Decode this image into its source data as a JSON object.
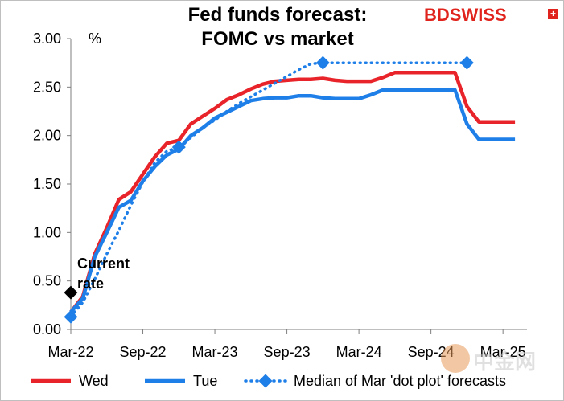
{
  "logo": {
    "part1": "BD",
    "part2": "SWISS",
    "symbol": "+"
  },
  "watermark": {
    "text": "中金网"
  },
  "colors": {
    "wed": "#e8242a",
    "tue": "#1f7fe8",
    "median": "#1f7fe8",
    "current": "#000000"
  },
  "chart_data": {
    "type": "line",
    "title_lines": [
      "Fed funds forecast:",
      "FOMC vs market"
    ],
    "ylabel": "%",
    "ylim": [
      0,
      3.0
    ],
    "yticks": [
      "0.00",
      "0.50",
      "1.00",
      "1.50",
      "2.00",
      "2.50",
      "3.00"
    ],
    "xticks": [
      "Mar-22",
      "Sep-22",
      "Mar-23",
      "Sep-23",
      "Mar-24",
      "Sep-24",
      "Mar-25"
    ],
    "xlim_months": [
      "2022-03",
      "2025-04"
    ],
    "annotation": "Current\nrate",
    "series": [
      {
        "name": "Wed",
        "style": "solid",
        "points": [
          [
            "2022-03",
            0.18
          ],
          [
            "2022-04",
            0.34
          ],
          [
            "2022-05",
            0.78
          ],
          [
            "2022-06",
            1.05
          ],
          [
            "2022-07",
            1.34
          ],
          [
            "2022-08",
            1.42
          ],
          [
            "2022-09",
            1.6
          ],
          [
            "2022-10",
            1.78
          ],
          [
            "2022-11",
            1.92
          ],
          [
            "2022-12",
            1.95
          ],
          [
            "2023-01",
            2.12
          ],
          [
            "2023-02",
            2.2
          ],
          [
            "2023-03",
            2.28
          ],
          [
            "2023-04",
            2.37
          ],
          [
            "2023-05",
            2.42
          ],
          [
            "2023-06",
            2.48
          ],
          [
            "2023-07",
            2.53
          ],
          [
            "2023-08",
            2.56
          ],
          [
            "2023-09",
            2.57
          ],
          [
            "2023-10",
            2.58
          ],
          [
            "2023-11",
            2.58
          ],
          [
            "2023-12",
            2.59
          ],
          [
            "2024-01",
            2.57
          ],
          [
            "2024-02",
            2.56
          ],
          [
            "2024-03",
            2.56
          ],
          [
            "2024-04",
            2.56
          ],
          [
            "2024-05",
            2.6
          ],
          [
            "2024-06",
            2.65
          ],
          [
            "2024-07",
            2.65
          ],
          [
            "2024-08",
            2.65
          ],
          [
            "2024-09",
            2.65
          ],
          [
            "2024-10",
            2.65
          ],
          [
            "2024-11",
            2.65
          ],
          [
            "2024-12",
            2.3
          ],
          [
            "2025-01",
            2.14
          ],
          [
            "2025-02",
            2.14
          ],
          [
            "2025-03",
            2.14
          ],
          [
            "2025-04",
            2.14
          ]
        ]
      },
      {
        "name": "Tue",
        "style": "solid",
        "points": [
          [
            "2022-03",
            0.18
          ],
          [
            "2022-04",
            0.32
          ],
          [
            "2022-05",
            0.75
          ],
          [
            "2022-06",
            1.0
          ],
          [
            "2022-07",
            1.26
          ],
          [
            "2022-08",
            1.33
          ],
          [
            "2022-09",
            1.53
          ],
          [
            "2022-10",
            1.68
          ],
          [
            "2022-11",
            1.8
          ],
          [
            "2022-12",
            1.86
          ],
          [
            "2023-01",
            2.0
          ],
          [
            "2023-02",
            2.08
          ],
          [
            "2023-03",
            2.18
          ],
          [
            "2023-04",
            2.24
          ],
          [
            "2023-05",
            2.3
          ],
          [
            "2023-06",
            2.36
          ],
          [
            "2023-07",
            2.38
          ],
          [
            "2023-08",
            2.39
          ],
          [
            "2023-09",
            2.39
          ],
          [
            "2023-10",
            2.41
          ],
          [
            "2023-11",
            2.41
          ],
          [
            "2023-12",
            2.39
          ],
          [
            "2024-01",
            2.38
          ],
          [
            "2024-02",
            2.38
          ],
          [
            "2024-03",
            2.38
          ],
          [
            "2024-04",
            2.42
          ],
          [
            "2024-05",
            2.47
          ],
          [
            "2024-06",
            2.47
          ],
          [
            "2024-07",
            2.47
          ],
          [
            "2024-08",
            2.47
          ],
          [
            "2024-09",
            2.47
          ],
          [
            "2024-10",
            2.47
          ],
          [
            "2024-11",
            2.47
          ],
          [
            "2024-12",
            2.12
          ],
          [
            "2025-01",
            1.96
          ],
          [
            "2025-02",
            1.96
          ],
          [
            "2025-03",
            1.96
          ],
          [
            "2025-04",
            1.96
          ]
        ]
      },
      {
        "name": "Median of Mar 'dot plot' forecasts",
        "style": "dotted",
        "markers": [
          [
            "2022-03",
            0.13
          ],
          [
            "2022-12",
            1.88
          ],
          [
            "2023-12",
            2.75
          ],
          [
            "2024-12",
            2.75
          ]
        ],
        "points": [
          [
            "2022-03",
            0.13
          ],
          [
            "2022-04",
            0.28
          ],
          [
            "2022-05",
            0.52
          ],
          [
            "2022-06",
            0.78
          ],
          [
            "2022-07",
            1.02
          ],
          [
            "2022-08",
            1.28
          ],
          [
            "2022-09",
            1.52
          ],
          [
            "2022-10",
            1.72
          ],
          [
            "2022-11",
            1.84
          ],
          [
            "2022-12",
            1.88
          ],
          [
            "2023-01",
            1.98
          ],
          [
            "2023-02",
            2.08
          ],
          [
            "2023-03",
            2.16
          ],
          [
            "2023-04",
            2.25
          ],
          [
            "2023-05",
            2.33
          ],
          [
            "2023-06",
            2.4
          ],
          [
            "2023-07",
            2.47
          ],
          [
            "2023-08",
            2.54
          ],
          [
            "2023-09",
            2.61
          ],
          [
            "2023-10",
            2.68
          ],
          [
            "2023-11",
            2.74
          ],
          [
            "2023-12",
            2.75
          ],
          [
            "2024-01",
            2.75
          ],
          [
            "2024-02",
            2.75
          ],
          [
            "2024-03",
            2.75
          ],
          [
            "2024-04",
            2.75
          ],
          [
            "2024-05",
            2.75
          ],
          [
            "2024-06",
            2.75
          ],
          [
            "2024-07",
            2.75
          ],
          [
            "2024-08",
            2.75
          ],
          [
            "2024-09",
            2.75
          ],
          [
            "2024-10",
            2.75
          ],
          [
            "2024-11",
            2.75
          ],
          [
            "2024-12",
            2.75
          ]
        ]
      },
      {
        "name": "Current rate",
        "style": "marker",
        "markers": [
          [
            "2022-03",
            0.38
          ]
        ]
      }
    ],
    "legend_placement": "bottom",
    "grid": false
  }
}
